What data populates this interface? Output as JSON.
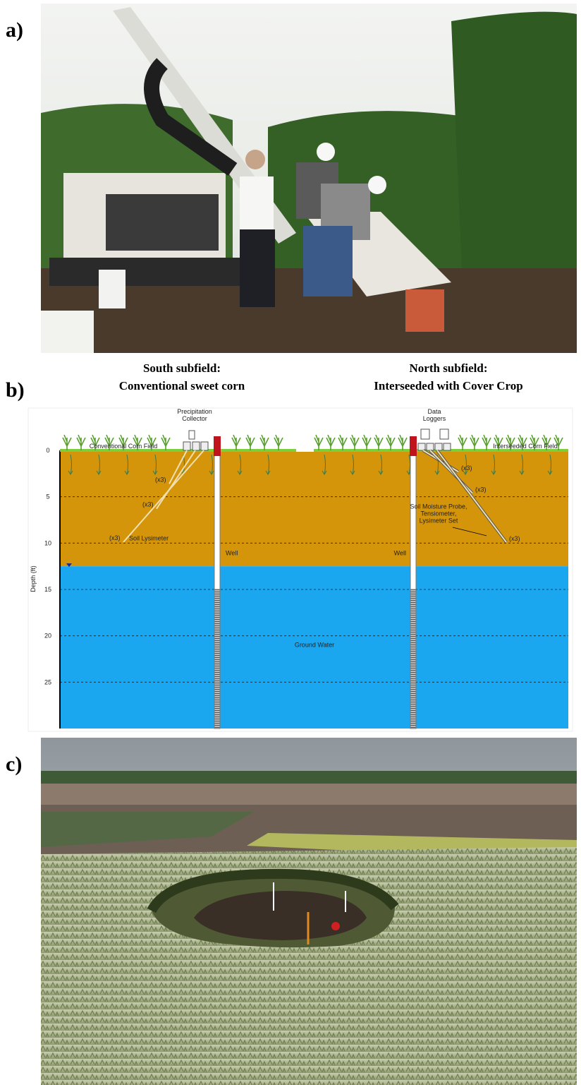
{
  "panels": [
    {
      "label": "a)"
    },
    {
      "label": "b)"
    },
    {
      "label": "c)"
    }
  ],
  "diagram": {
    "south_title": [
      "South subfield:",
      "Conventional sweet corn"
    ],
    "north_title": [
      "North subfield:",
      "Interseeded with Cover Crop"
    ],
    "y_axis_label": "Depth (ft)",
    "ylim": [
      0,
      30
    ],
    "yticks": [
      0,
      5,
      10,
      15,
      20,
      25
    ],
    "water_table_depth": 12.5,
    "precipitation_label": [
      "Precipitation",
      "Collector"
    ],
    "loggers_label": [
      "Data",
      "Loggers"
    ],
    "south_field_label": "Conventional Corn Field",
    "north_field_label": "Interseeded Corn Field",
    "south_set_labels": [
      "(x3)",
      "(x3)",
      "(x3)"
    ],
    "lysimeter_label": "Soil Lysimeter",
    "north_set_labels": [
      "(x3)",
      "(x3)",
      "(x3)"
    ],
    "probe_label": [
      "Soil Moisture Probe,",
      "Tensiometer,",
      "Lysimeter Set"
    ],
    "well_labels": [
      "Well",
      "Well"
    ],
    "groundwater_label": "Ground Water"
  }
}
